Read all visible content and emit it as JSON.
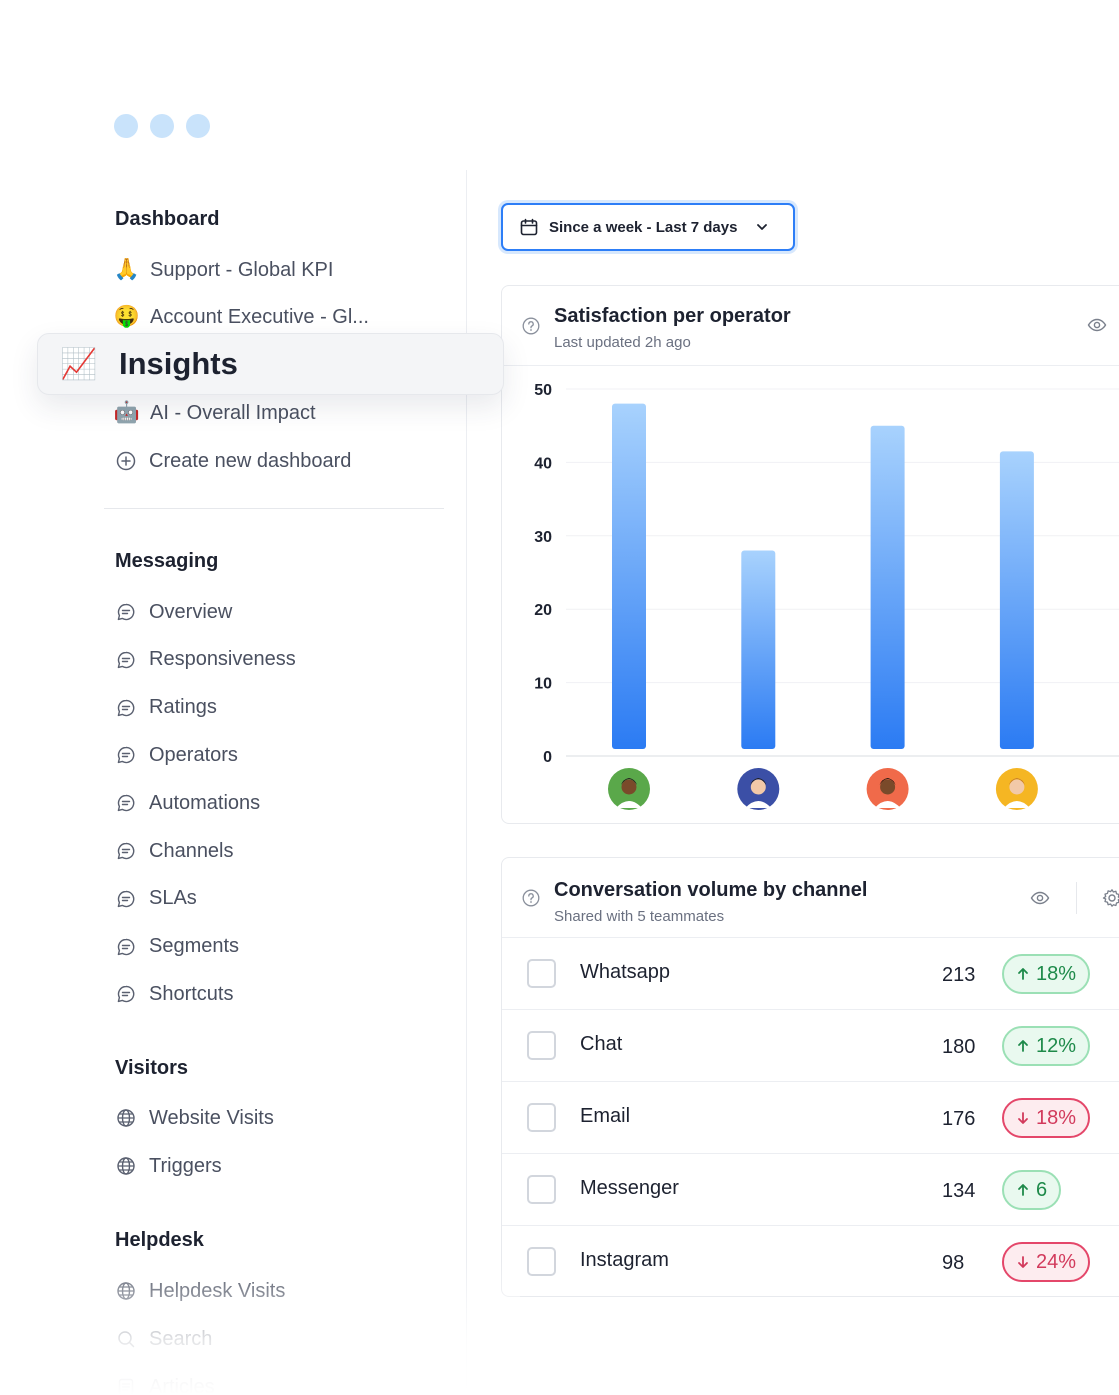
{
  "sidebar": {
    "dashboard": {
      "title": "Dashboard",
      "items": [
        {
          "emoji": "🙏",
          "label": "Support - Global KPI"
        },
        {
          "emoji": "🤑",
          "label": "Account Executive - Gl..."
        },
        {
          "emoji": "📈",
          "label": "Insights"
        },
        {
          "emoji": "🤖",
          "label": "AI - Overall Impact"
        },
        {
          "icon": "plus-circle-icon",
          "label": "Create new dashboard"
        }
      ]
    },
    "messaging": {
      "title": "Messaging",
      "items": [
        "Overview",
        "Responsiveness",
        "Ratings",
        "Operators",
        "Automations",
        "Channels",
        "SLAs",
        "Segments",
        "Shortcuts"
      ]
    },
    "visitors": {
      "title": "Visitors",
      "items": [
        "Website Visits",
        "Triggers"
      ]
    },
    "helpdesk": {
      "title": "Helpdesk",
      "items": [
        "Helpdesk Visits",
        "Search",
        "Articles"
      ]
    }
  },
  "date_filter": {
    "label": "Since a week - Last 7 days"
  },
  "satisfaction": {
    "title": "Satisfaction per operator",
    "subtitle": "Last updated 2h ago"
  },
  "chart_data": {
    "type": "bar",
    "categories": [
      "operator-1",
      "operator-2",
      "operator-3",
      "operator-4"
    ],
    "values": [
      48,
      28,
      45,
      41.5
    ],
    "yticks": [
      0,
      10,
      20,
      30,
      40,
      50
    ],
    "ylim": [
      0,
      50
    ],
    "xlabel": "",
    "ylabel": "",
    "grid": true,
    "bar_gradient": [
      "#a8d2fd",
      "#2b7bf3"
    ]
  },
  "operators": [
    {
      "bg": "#5aa84a",
      "skin": "#7a4a2a",
      "hair": "#1c1c1c"
    },
    {
      "bg": "#3b4fa6",
      "skin": "#f2c9a8",
      "hair": "#1c1c1c"
    },
    {
      "bg": "#f06a4a",
      "skin": "#7a4a2a",
      "hair": "#2a1a10"
    },
    {
      "bg": "#f5b623",
      "skin": "#f2c9a8",
      "hair": "#c77d2a"
    }
  ],
  "conversation": {
    "title": "Conversation volume by channel",
    "subtitle": "Shared with 5 teammates",
    "rows": [
      {
        "channel": "Whatsapp",
        "value": "213",
        "change": "18%",
        "direction": "up"
      },
      {
        "channel": "Chat",
        "value": "180",
        "change": "12%",
        "direction": "up"
      },
      {
        "channel": "Email",
        "value": "176",
        "change": "18%",
        "direction": "down"
      },
      {
        "channel": "Messenger",
        "value": "134",
        "change": "6",
        "direction": "up"
      },
      {
        "channel": "Instagram",
        "value": "98",
        "change": "24%",
        "direction": "down"
      }
    ]
  }
}
